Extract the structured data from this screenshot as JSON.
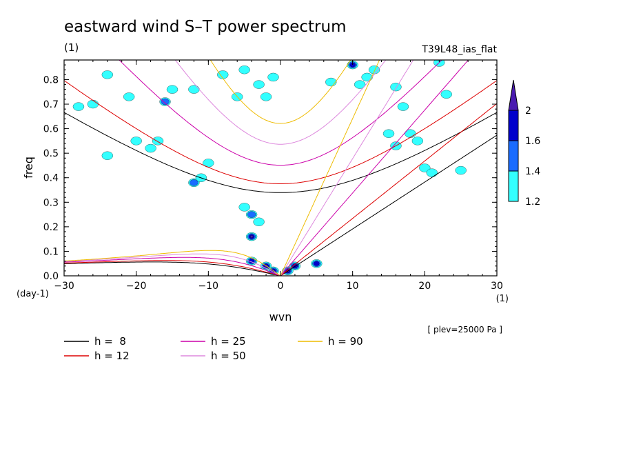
{
  "chart_data": {
    "type": "contour",
    "title": "eastward wind S–T power spectrum",
    "subtitle": "(1)",
    "run_label": "T39L48_ias_flat",
    "xlabel": "wvn",
    "ylabel": "freq",
    "x_unit": "(1)",
    "y_unit": "(day-1)",
    "xlim": [
      -30,
      30
    ],
    "ylim": [
      0,
      0.88
    ],
    "x_ticks": [
      -30,
      -20,
      -10,
      0,
      10,
      20,
      30
    ],
    "y_ticks": [
      0.0,
      0.1,
      0.2,
      0.3,
      0.4,
      0.5,
      0.6,
      0.7,
      0.8
    ],
    "x_tick_labels": [
      "−30",
      "−20",
      "−10",
      "0",
      "10",
      "20",
      "30"
    ],
    "y_tick_labels": [
      "0.0",
      "0.1",
      "0.2",
      "0.3",
      "0.4",
      "0.5",
      "0.6",
      "0.7",
      "0.8"
    ],
    "level_note": "[ plev=25000 Pa ]",
    "colorbar": {
      "levels": [
        1.2,
        1.4,
        1.6,
        2
      ],
      "level_labels": [
        "1.2",
        "1.4",
        "1.6",
        "2"
      ],
      "colors": [
        "#33ffff",
        "#1a6cff",
        "#0000cc",
        "#4a1ab0"
      ]
    },
    "dispersion_curves": [
      {
        "h": 8,
        "label": "h =  8",
        "color": "#000000"
      },
      {
        "h": 12,
        "label": "h = 12",
        "color": "#dd0000"
      },
      {
        "h": 25,
        "label": "h = 25",
        "color": "#cc00aa"
      },
      {
        "h": 50,
        "label": "h = 50",
        "color": "#dd88dd"
      },
      {
        "h": 90,
        "label": "h = 90",
        "color": "#eebb00"
      }
    ],
    "power_blobs": [
      {
        "x": -4,
        "y": 0.16,
        "level": 3
      },
      {
        "x": -4,
        "y": 0.06,
        "level": 2
      },
      {
        "x": -2,
        "y": 0.04,
        "level": 3
      },
      {
        "x": -1,
        "y": 0.02,
        "level": 2
      },
      {
        "x": 1,
        "y": 0.02,
        "level": 3
      },
      {
        "x": 2,
        "y": 0.04,
        "level": 2
      },
      {
        "x": 5,
        "y": 0.05,
        "level": 2
      },
      {
        "x": -4,
        "y": 0.25,
        "level": 1
      },
      {
        "x": -5,
        "y": 0.28,
        "level": 0
      },
      {
        "x": -3,
        "y": 0.22,
        "level": 0
      },
      {
        "x": -12,
        "y": 0.38,
        "level": 1
      },
      {
        "x": -11,
        "y": 0.4,
        "level": 0
      },
      {
        "x": -10,
        "y": 0.46,
        "level": 0
      },
      {
        "x": -17,
        "y": 0.55,
        "level": 0
      },
      {
        "x": -16,
        "y": 0.71,
        "level": 1
      },
      {
        "x": -15,
        "y": 0.76,
        "level": 0
      },
      {
        "x": -12,
        "y": 0.76,
        "level": 0
      },
      {
        "x": -20,
        "y": 0.55,
        "level": 0
      },
      {
        "x": -24,
        "y": 0.82,
        "level": 0
      },
      {
        "x": -26,
        "y": 0.7,
        "level": 0
      },
      {
        "x": -28,
        "y": 0.69,
        "level": 0
      },
      {
        "x": -8,
        "y": 0.82,
        "level": 0
      },
      {
        "x": -5,
        "y": 0.84,
        "level": 0
      },
      {
        "x": -3,
        "y": 0.78,
        "level": 0
      },
      {
        "x": -2,
        "y": 0.73,
        "level": 0
      },
      {
        "x": 10,
        "y": 0.86,
        "level": 2
      },
      {
        "x": 12,
        "y": 0.81,
        "level": 0
      },
      {
        "x": 13,
        "y": 0.84,
        "level": 0
      },
      {
        "x": 16,
        "y": 0.77,
        "level": 0
      },
      {
        "x": 17,
        "y": 0.69,
        "level": 0
      },
      {
        "x": 18,
        "y": 0.58,
        "level": 0
      },
      {
        "x": 19,
        "y": 0.55,
        "level": 0
      },
      {
        "x": 20,
        "y": 0.44,
        "level": 0
      },
      {
        "x": 21,
        "y": 0.42,
        "level": 0
      },
      {
        "x": 25,
        "y": 0.43,
        "level": 0
      },
      {
        "x": 22,
        "y": 0.87,
        "level": 0
      },
      {
        "x": 23,
        "y": 0.74,
        "level": 0
      },
      {
        "x": 15,
        "y": 0.58,
        "level": 0
      },
      {
        "x": 16,
        "y": 0.53,
        "level": 0
      },
      {
        "x": 11,
        "y": 0.78,
        "level": 0
      },
      {
        "x": -1,
        "y": 0.81,
        "level": 0
      },
      {
        "x": -21,
        "y": 0.73,
        "level": 0
      },
      {
        "x": -24,
        "y": 0.49,
        "level": 0
      },
      {
        "x": -18,
        "y": 0.52,
        "level": 0
      },
      {
        "x": -6,
        "y": 0.73,
        "level": 0
      },
      {
        "x": 7,
        "y": 0.79,
        "level": 0
      }
    ]
  }
}
